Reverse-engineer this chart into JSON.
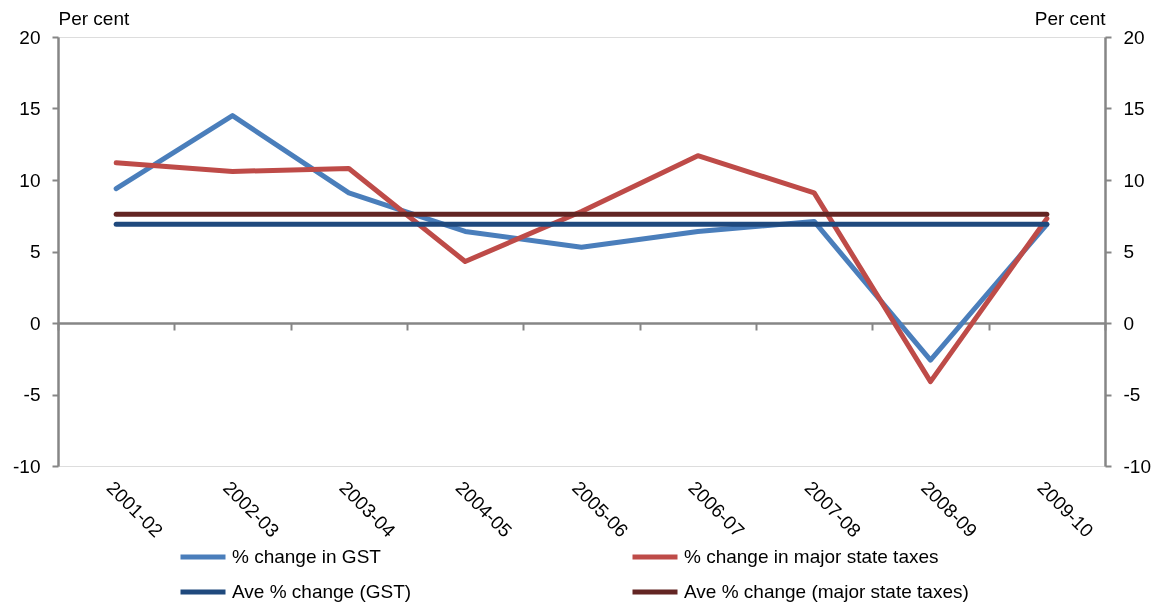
{
  "chart_data": {
    "type": "line",
    "ylabel": "Per cent",
    "y2label": "Per cent",
    "categories": [
      "2001-02",
      "2002-03",
      "2003-04",
      "2004-05",
      "2005-06",
      "2006-07",
      "2007-08",
      "2008-09",
      "2009-10"
    ],
    "series": [
      {
        "name": "% change in GST",
        "color": "#4a7ebb",
        "values": [
          9.4,
          14.5,
          9.1,
          6.4,
          5.3,
          6.4,
          7.1,
          -2.6,
          6.9
        ]
      },
      {
        "name": "% change in major state taxes",
        "color": "#be4b48",
        "values": [
          11.2,
          10.6,
          10.8,
          4.3,
          7.8,
          11.7,
          9.1,
          -4.1,
          7.3
        ]
      },
      {
        "name": "Ave % change (GST)",
        "color": "#1f497d",
        "values": [
          6.9,
          6.9,
          6.9,
          6.9,
          6.9,
          6.9,
          6.9,
          6.9,
          6.9
        ]
      },
      {
        "name": "Ave % change (major state taxes)",
        "color": "#632523",
        "values": [
          7.6,
          7.6,
          7.6,
          7.6,
          7.6,
          7.6,
          7.6,
          7.6,
          7.6
        ]
      }
    ],
    "ylim": [
      -10,
      20
    ],
    "yticks": [
      -10,
      -5,
      0,
      5,
      10,
      15,
      20
    ],
    "y2lim": [
      -10,
      20
    ],
    "y2ticks": [
      -10,
      -5,
      0,
      5,
      10,
      15,
      20
    ],
    "legend": "bottom",
    "line_style": "solid"
  }
}
